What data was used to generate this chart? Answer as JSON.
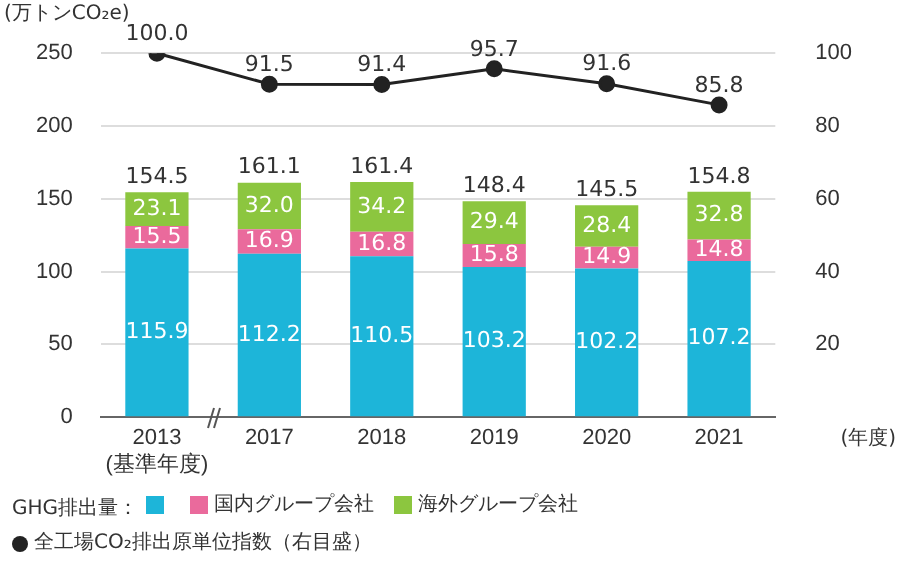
{
  "chart_data": {
    "type": "bar",
    "stacked": true,
    "ylabel": "(万トンCO₂e)",
    "xlabel": "(年度)",
    "legend_title": "GHG排出量：",
    "categories": [
      "2013\n(基準年度)",
      "2017",
      "2018",
      "2019",
      "2020",
      "2021"
    ],
    "series": [
      {
        "color": "#1db5d9",
        "values": [
          115.9,
          112.2,
          110.5,
          103.2,
          102.2,
          107.2
        ],
        "value_labels": [
          "115.9",
          "112.2",
          "110.5",
          "103.2",
          "102.2",
          "107.2"
        ]
      },
      {
        "name": "国内グループ会社",
        "color": "#ea6a9c",
        "values": [
          15.5,
          16.9,
          16.8,
          15.8,
          14.9,
          14.8
        ],
        "value_labels": [
          "15.5",
          "16.9",
          "16.8",
          "15.8",
          "14.9",
          "14.8"
        ]
      },
      {
        "name": "海外グループ会社",
        "color": "#8cc63f",
        "values": [
          23.1,
          32.0,
          34.2,
          29.4,
          28.4,
          32.8
        ],
        "value_labels": [
          "23.1",
          "32.0",
          "34.2",
          "29.4",
          "28.4",
          "32.8"
        ]
      },
      {
        "name": "全工場CO₂排出原単位指数（右目盛）",
        "type": "line",
        "axis": "y2",
        "color": "#222222",
        "marker": "circle",
        "values": [
          100.0,
          91.5,
          91.4,
          95.7,
          91.6,
          85.8
        ],
        "value_labels": [
          "100.0",
          "91.5",
          "91.4",
          "95.7",
          "91.6",
          "85.8"
        ]
      }
    ],
    "totals": [
      "154.5",
      "161.1",
      "161.4",
      "148.4",
      "145.5",
      "154.8"
    ],
    "ylim": [
      0,
      250
    ],
    "yticks": [
      0,
      50,
      100,
      150,
      200,
      250
    ],
    "y2lim": [
      0,
      100
    ],
    "y2ticks": [
      20,
      40,
      60,
      80,
      100
    ],
    "grid": "y",
    "legend": "bottom"
  }
}
